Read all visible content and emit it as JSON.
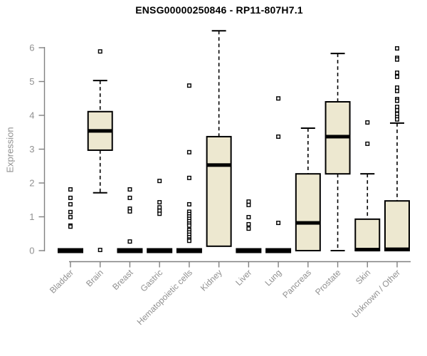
{
  "chart_data": {
    "type": "boxplot",
    "title": "ENSG00000250846 - RP11-807H7.1",
    "ylabel": "Expression",
    "xlabel": "",
    "ylim": [
      0,
      6.6
    ],
    "yticks": [
      0,
      1,
      2,
      3,
      4,
      5,
      6
    ],
    "grid": false,
    "legend": null,
    "categories": [
      "Bladder",
      "Brain",
      "Breast",
      "Gastric",
      "Hematopoietic cells",
      "Kidney",
      "Liver",
      "Lung",
      "Pancreas",
      "Prostate",
      "Skin",
      "Unknown / Other"
    ],
    "boxes": [
      {
        "category": "Bladder",
        "q1": 0,
        "median": 0,
        "q3": 0,
        "whisker_low": 0,
        "whisker_high": 0,
        "outliers": [
          1.81,
          1.56,
          1.37,
          1.14,
          0.99,
          0.74,
          0.71
        ]
      },
      {
        "category": "Brain",
        "q1": 2.97,
        "median": 3.54,
        "q3": 4.11,
        "whisker_low": 1.71,
        "whisker_high": 5.03,
        "outliers": [
          5.89,
          0.02
        ]
      },
      {
        "category": "Breast",
        "q1": 0,
        "median": 0,
        "q3": 0,
        "whisker_low": 0,
        "whisker_high": 0,
        "outliers": [
          1.81,
          1.56,
          1.24,
          1.16,
          0.27
        ]
      },
      {
        "category": "Gastric",
        "q1": 0,
        "median": 0,
        "q3": 0,
        "whisker_low": 0,
        "whisker_high": 0,
        "outliers": [
          2.06,
          1.43,
          1.28,
          1.18,
          1.09
        ]
      },
      {
        "category": "Hematopoietic cells",
        "q1": 0,
        "median": 0,
        "q3": 0,
        "whisker_low": 0,
        "whisker_high": 0,
        "outliers": [
          4.88,
          2.91,
          2.15,
          1.37,
          1.15,
          1.08,
          1.01,
          0.94,
          0.87,
          0.8,
          0.74,
          0.61,
          0.54,
          0.47,
          0.4,
          0.33,
          0.29
        ]
      },
      {
        "category": "Kidney",
        "q1": 0.13,
        "median": 2.53,
        "q3": 3.37,
        "whisker_low": null,
        "whisker_high": 6.5,
        "outliers": []
      },
      {
        "category": "Liver",
        "q1": 0,
        "median": 0,
        "q3": 0,
        "whisker_low": 0,
        "whisker_high": 0,
        "outliers": [
          1.45,
          1.35,
          0.99,
          0.78,
          0.65
        ]
      },
      {
        "category": "Lung",
        "q1": 0,
        "median": 0,
        "q3": 0,
        "whisker_low": 0,
        "whisker_high": 0,
        "outliers": [
          4.5,
          3.37,
          0.82
        ]
      },
      {
        "category": "Pancreas",
        "q1": 0,
        "median": 0.82,
        "q3": 2.27,
        "whisker_low": null,
        "whisker_high": 3.62,
        "outliers": []
      },
      {
        "category": "Prostate",
        "q1": 2.27,
        "median": 3.37,
        "q3": 4.4,
        "whisker_low": 0,
        "whisker_high": 5.83,
        "outliers": []
      },
      {
        "category": "Skin",
        "q1": 0,
        "median": 0.03,
        "q3": 0.93,
        "whisker_low": null,
        "whisker_high": 2.27,
        "outliers": [
          3.79,
          3.16
        ]
      },
      {
        "category": "Unknown / Other",
        "q1": 0,
        "median": 0.04,
        "q3": 1.47,
        "whisker_low": null,
        "whisker_high": 3.77,
        "outliers": [
          5.98,
          5.7,
          5.65,
          5.26,
          5.14,
          4.82,
          4.72,
          4.48,
          4.43,
          4.25,
          4.15,
          4.04,
          3.95,
          3.88
        ]
      }
    ],
    "colors": {
      "box_fill": "#EDE8D0",
      "box_border": "#000000",
      "median": "#000000",
      "whisker": "#000000",
      "outlier_stroke": "#000000",
      "outlier_fill": "#FFFFFF",
      "axis": "#808080",
      "tick_label": "#909090",
      "title": "#000000",
      "background": "#FFFFFF"
    }
  }
}
